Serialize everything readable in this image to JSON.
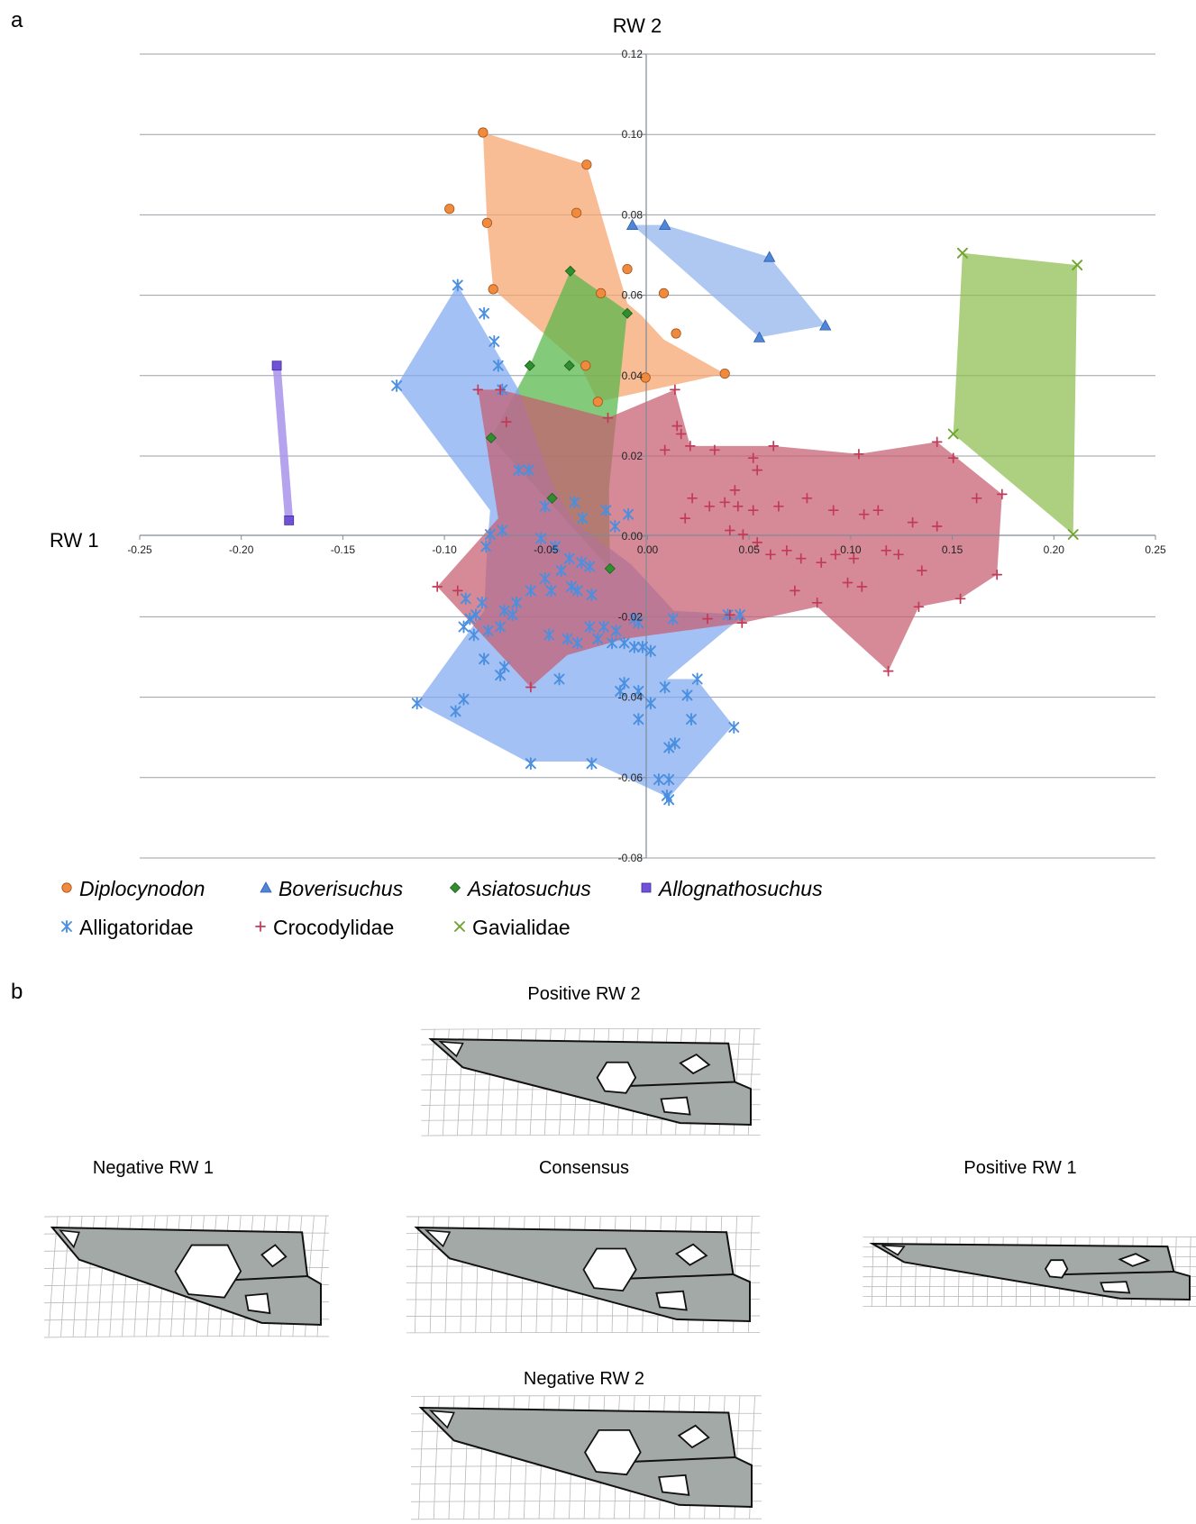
{
  "panel_a_label": "a",
  "panel_b_label": "b",
  "chart_data": {
    "type": "scatter",
    "xlabel": "RW 1",
    "ylabel": "RW 2",
    "xlim": [
      -0.25,
      0.25
    ],
    "ylim": [
      -0.08,
      0.12
    ],
    "xticks": [
      "-0.25",
      "-0.20",
      "-0.15",
      "-0.10",
      "-0.05",
      "0.00",
      "0.05",
      "0.10",
      "0.15",
      "0.20",
      "0.25"
    ],
    "yticks": [
      "0.12",
      "0.10",
      "0.08",
      "0.06",
      "0.04",
      "0.02",
      "0.00",
      "-0.02",
      "-0.04",
      "-0.06",
      "-0.08"
    ],
    "grid": "horizontal",
    "legend_position": "bottom",
    "series": [
      {
        "name": "Diplocynodon",
        "italic": true,
        "marker": "circle",
        "color": "#f08a3c",
        "fill": "#f7a46e",
        "hull": [
          [
            -0.081,
            0.1005
          ],
          [
            -0.03,
            0.0925
          ],
          [
            -0.01,
            0.058
          ],
          [
            -0.003,
            0.055
          ],
          [
            0.008,
            0.049
          ],
          [
            0.038,
            0.0405
          ],
          [
            -0.0245,
            0.0335
          ],
          [
            -0.033,
            0.0425
          ],
          [
            -0.076,
            0.0615
          ],
          [
            -0.079,
            0.078
          ]
        ],
        "points": [
          [
            -0.081,
            0.1005
          ],
          [
            -0.03,
            0.0925
          ],
          [
            -0.0975,
            0.0815
          ],
          [
            -0.035,
            0.0805
          ],
          [
            -0.079,
            0.078
          ],
          [
            -0.01,
            0.0665
          ],
          [
            -0.076,
            0.0615
          ],
          [
            -0.023,
            0.0605
          ],
          [
            0.008,
            0.0605
          ],
          [
            0.014,
            0.0505
          ],
          [
            -0.0305,
            0.0425
          ],
          [
            -0.001,
            0.0395
          ],
          [
            0.038,
            0.0405
          ],
          [
            -0.0245,
            0.0335
          ]
        ]
      },
      {
        "name": "Boverisuchus",
        "italic": true,
        "marker": "triangle",
        "color": "#4f86d8",
        "fill": "#8fb3ec",
        "hull": [
          [
            -0.0075,
            0.0775
          ],
          [
            0.0085,
            0.0775
          ],
          [
            0.06,
            0.0695
          ],
          [
            0.0875,
            0.0525
          ],
          [
            0.055,
            0.0495
          ]
        ],
        "points": [
          [
            -0.0075,
            0.0775
          ],
          [
            0.0085,
            0.0775
          ],
          [
            0.06,
            0.0695
          ],
          [
            0.0875,
            0.0525
          ],
          [
            0.055,
            0.0495
          ]
        ]
      },
      {
        "name": "Asiatosuchus",
        "italic": true,
        "marker": "diamond",
        "color": "#2f8f2f",
        "fill": "#55b548",
        "hull": [
          [
            -0.038,
            0.066
          ],
          [
            -0.01,
            0.056
          ],
          [
            -0.019,
            0.012
          ],
          [
            -0.0185,
            -0.008
          ],
          [
            -0.077,
            0.0245
          ],
          [
            -0.058,
            0.0425
          ]
        ],
        "points": [
          [
            -0.038,
            0.066
          ],
          [
            -0.01,
            0.0555
          ],
          [
            -0.058,
            0.0425
          ],
          [
            -0.0385,
            0.0425
          ],
          [
            -0.077,
            0.0245
          ],
          [
            -0.047,
            0.0095
          ],
          [
            -0.0185,
            -0.008
          ]
        ]
      },
      {
        "name": "Allognathosuchus",
        "italic": true,
        "marker": "square",
        "color": "#7152d6",
        "fill": "#a893eb",
        "hull": [
          [
            -0.1825,
            0.0425
          ],
          [
            -0.1765,
            0.004
          ]
        ],
        "points": [
          [
            -0.1825,
            0.0425
          ],
          [
            -0.1765,
            0.004
          ]
        ]
      },
      {
        "name": "Alligatoridae",
        "italic": false,
        "marker": "asterisk",
        "color": "#4a8fe0",
        "fill": "#7fa9f0",
        "hull": [
          [
            -0.0935,
            0.0625
          ],
          [
            -0.0635,
            0.0365
          ],
          [
            -0.0465,
            0.0125
          ],
          [
            -0.036,
            0.0035
          ],
          [
            -0.008,
            -0.007
          ],
          [
            0.013,
            -0.0185
          ],
          [
            0.048,
            -0.0195
          ],
          [
            0.038,
            -0.0235
          ],
          [
            0.0095,
            -0.0355
          ],
          [
            0.024,
            -0.0355
          ],
          [
            0.042,
            -0.047
          ],
          [
            0.0105,
            -0.065
          ],
          [
            -0.0275,
            -0.056
          ],
          [
            -0.0595,
            -0.056
          ],
          [
            -0.1135,
            -0.0415
          ],
          [
            -0.0805,
            -0.0185
          ],
          [
            -0.079,
            -0.003
          ],
          [
            -0.0775,
            0.0065
          ],
          [
            -0.1235,
            0.0375
          ]
        ],
        "points": [
          [
            -0.0935,
            0.0625
          ],
          [
            -0.0805,
            0.0555
          ],
          [
            -0.0755,
            0.0485
          ],
          [
            -0.0735,
            0.0425
          ],
          [
            -0.1235,
            0.0375
          ],
          [
            -0.0715,
            0.0365
          ],
          [
            -0.0635,
            0.0165
          ],
          [
            -0.0585,
            0.0165
          ],
          [
            -0.0505,
            0.0075
          ],
          [
            -0.036,
            0.0085
          ],
          [
            -0.032,
            0.0045
          ],
          [
            -0.0205,
            0.0065
          ],
          [
            -0.0095,
            0.0055
          ],
          [
            -0.016,
            0.0025
          ],
          [
            -0.0715,
            0.0015
          ],
          [
            -0.0795,
            -0.0025
          ],
          [
            -0.0775,
            0.0005
          ],
          [
            -0.0525,
            -0.0005
          ],
          [
            -0.0455,
            -0.0025
          ],
          [
            -0.0385,
            -0.0055
          ],
          [
            -0.0325,
            -0.0065
          ],
          [
            -0.0285,
            -0.0075
          ],
          [
            -0.0425,
            -0.0085
          ],
          [
            -0.0505,
            -0.0105
          ],
          [
            -0.0575,
            -0.0135
          ],
          [
            -0.0475,
            -0.0135
          ],
          [
            -0.0375,
            -0.0125
          ],
          [
            -0.0345,
            -0.0135
          ],
          [
            -0.0275,
            -0.0145
          ],
          [
            -0.0895,
            -0.0155
          ],
          [
            -0.0815,
            -0.0165
          ],
          [
            -0.0645,
            -0.0165
          ],
          [
            -0.0845,
            -0.0195
          ],
          [
            -0.0875,
            -0.0205
          ],
          [
            -0.0705,
            -0.0185
          ],
          [
            -0.0665,
            -0.0195
          ],
          [
            -0.0905,
            -0.0225
          ],
          [
            -0.0855,
            -0.0245
          ],
          [
            -0.0785,
            -0.0235
          ],
          [
            -0.0725,
            -0.0225
          ],
          [
            -0.0285,
            -0.0225
          ],
          [
            -0.0215,
            -0.0225
          ],
          [
            -0.0155,
            -0.0235
          ],
          [
            -0.0065,
            -0.0205
          ],
          [
            -0.0045,
            -0.0215
          ],
          [
            0.0125,
            -0.0205
          ],
          [
            0.0395,
            -0.0195
          ],
          [
            0.0455,
            -0.0195
          ],
          [
            -0.0485,
            -0.0245
          ],
          [
            -0.0395,
            -0.0255
          ],
          [
            -0.0345,
            -0.0265
          ],
          [
            -0.0245,
            -0.0255
          ],
          [
            -0.0175,
            -0.0265
          ],
          [
            -0.0115,
            -0.0265
          ],
          [
            -0.0065,
            -0.0275
          ],
          [
            -0.0025,
            -0.0275
          ],
          [
            0.0015,
            -0.0285
          ],
          [
            -0.0805,
            -0.0305
          ],
          [
            -0.0705,
            -0.0325
          ],
          [
            -0.0725,
            -0.0345
          ],
          [
            -0.0435,
            -0.0355
          ],
          [
            -0.0115,
            -0.0365
          ],
          [
            -0.0135,
            -0.0385
          ],
          [
            -0.0045,
            -0.0385
          ],
          [
            0.0085,
            -0.0375
          ],
          [
            0.0015,
            -0.0415
          ],
          [
            0.0245,
            -0.0355
          ],
          [
            0.0195,
            -0.0395
          ],
          [
            -0.1135,
            -0.0415
          ],
          [
            -0.0905,
            -0.0405
          ],
          [
            -0.0945,
            -0.0435
          ],
          [
            -0.0045,
            -0.0455
          ],
          [
            0.0425,
            -0.0475
          ],
          [
            0.0215,
            -0.0455
          ],
          [
            0.0135,
            -0.0515
          ],
          [
            0.0105,
            -0.0525
          ],
          [
            -0.0575,
            -0.0565
          ],
          [
            -0.0275,
            -0.0565
          ],
          [
            0.0055,
            -0.0605
          ],
          [
            0.0105,
            -0.0605
          ],
          [
            0.0095,
            -0.0645
          ],
          [
            0.0105,
            -0.0655
          ]
        ]
      },
      {
        "name": "Crocodylidae",
        "italic": false,
        "marker": "plus",
        "color": "#c23a57",
        "fill": "#c65d70",
        "hull": [
          [
            -0.0835,
            0.0365
          ],
          [
            -0.0725,
            0.0365
          ],
          [
            -0.0195,
            0.0295
          ],
          [
            0.0135,
            0.0365
          ],
          [
            0.021,
            0.0225
          ],
          [
            0.062,
            0.0225
          ],
          [
            0.104,
            0.0205
          ],
          [
            0.1425,
            0.0235
          ],
          [
            0.1745,
            0.0105
          ],
          [
            0.172,
            -0.0095
          ],
          [
            0.154,
            -0.0155
          ],
          [
            0.1335,
            -0.0175
          ],
          [
            0.1185,
            -0.0335
          ],
          [
            0.0835,
            -0.0175
          ],
          [
            0.0465,
            -0.0215
          ],
          [
            -0.0115,
            -0.0255
          ],
          [
            -0.0395,
            -0.0295
          ],
          [
            -0.0575,
            -0.0375
          ],
          [
            -0.1035,
            -0.0125
          ],
          [
            -0.0735,
            0.0045
          ]
        ],
        "points": [
          [
            -0.0835,
            0.0365
          ],
          [
            -0.0725,
            0.0365
          ],
          [
            -0.0695,
            0.0285
          ],
          [
            -0.0195,
            0.0295
          ],
          [
            0.0135,
            0.0365
          ],
          [
            0.0145,
            0.0275
          ],
          [
            0.0165,
            0.0255
          ],
          [
            0.0085,
            0.0215
          ],
          [
            0.021,
            0.0225
          ],
          [
            0.033,
            0.0215
          ],
          [
            0.052,
            0.0195
          ],
          [
            0.062,
            0.0225
          ],
          [
            0.104,
            0.0205
          ],
          [
            0.1425,
            0.0235
          ],
          [
            0.1505,
            0.0195
          ],
          [
            0.054,
            0.0165
          ],
          [
            0.043,
            0.0115
          ],
          [
            0.022,
            0.0095
          ],
          [
            0.0185,
            0.0045
          ],
          [
            0.0305,
            0.0075
          ],
          [
            0.038,
            0.0085
          ],
          [
            0.0445,
            0.0075
          ],
          [
            0.052,
            0.0065
          ],
          [
            0.0645,
            0.0075
          ],
          [
            0.0785,
            0.0095
          ],
          [
            0.0915,
            0.0065
          ],
          [
            0.1065,
            0.0055
          ],
          [
            0.1135,
            0.0065
          ],
          [
            0.1305,
            0.0035
          ],
          [
            0.1425,
            0.0025
          ],
          [
            0.162,
            0.0095
          ],
          [
            0.1745,
            0.0105
          ],
          [
            0.0405,
            0.0015
          ],
          [
            0.047,
            0.0005
          ],
          [
            0.054,
            -0.0015
          ],
          [
            0.0605,
            -0.0045
          ],
          [
            0.0685,
            -0.0035
          ],
          [
            0.0755,
            -0.0055
          ],
          [
            0.0855,
            -0.0065
          ],
          [
            0.0925,
            -0.0045
          ],
          [
            0.1015,
            -0.0055
          ],
          [
            0.1175,
            -0.0035
          ],
          [
            0.1235,
            -0.0045
          ],
          [
            0.135,
            -0.0085
          ],
          [
            0.154,
            -0.0155
          ],
          [
            0.172,
            -0.0095
          ],
          [
            0.0725,
            -0.0135
          ],
          [
            0.0835,
            -0.0165
          ],
          [
            0.0985,
            -0.0115
          ],
          [
            0.1055,
            -0.0125
          ],
          [
            0.1335,
            -0.0175
          ],
          [
            0.1185,
            -0.0335
          ],
          [
            0.0465,
            -0.0215
          ],
          [
            0.0405,
            -0.0195
          ],
          [
            0.0295,
            -0.0205
          ],
          [
            -0.1035,
            -0.0125
          ],
          [
            -0.0935,
            -0.0135
          ],
          [
            -0.0575,
            -0.0375
          ]
        ]
      },
      {
        "name": "Gavialidae",
        "italic": false,
        "marker": "x",
        "color": "#6fa52f",
        "fill": "#8dbd4f",
        "hull": [
          [
            0.155,
            0.0705
          ],
          [
            0.2115,
            0.0675
          ],
          [
            0.2095,
            0.0005
          ],
          [
            0.1505,
            0.0255
          ]
        ],
        "points": [
          [
            0.155,
            0.0705
          ],
          [
            0.2115,
            0.0675
          ],
          [
            0.1505,
            0.0255
          ],
          [
            0.2095,
            0.0005
          ]
        ]
      }
    ]
  },
  "shapes": {
    "positive_rw2": "Positive RW 2",
    "negative_rw1": "Negative RW 1",
    "consensus": "Consensus",
    "positive_rw1": "Positive RW 1",
    "negative_rw2": "Negative RW 2"
  }
}
